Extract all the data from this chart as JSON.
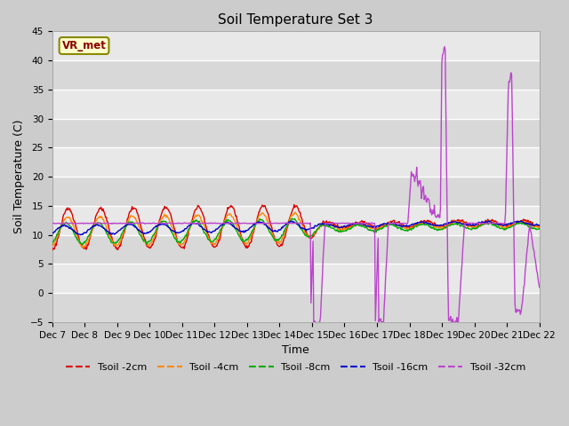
{
  "title": "Soil Temperature Set 3",
  "xlabel": "Time",
  "ylabel": "Soil Temperature (C)",
  "ylim": [
    -5,
    45
  ],
  "yticks": [
    -5,
    0,
    5,
    10,
    15,
    20,
    25,
    30,
    35,
    40,
    45
  ],
  "bg_color": "#e8e8e8",
  "plot_bg_light": "#f0f0f0",
  "plot_bg_dark": "#dcdcdc",
  "legend_labels": [
    "Tsoil -2cm",
    "Tsoil -4cm",
    "Tsoil -8cm",
    "Tsoil -16cm",
    "Tsoil -32cm"
  ],
  "line_colors": [
    "#dd0000",
    "#ff8800",
    "#00aa00",
    "#0000cc",
    "#bb44cc"
  ],
  "annotation_text": "VR_met",
  "start_day": 7,
  "end_day": 22
}
